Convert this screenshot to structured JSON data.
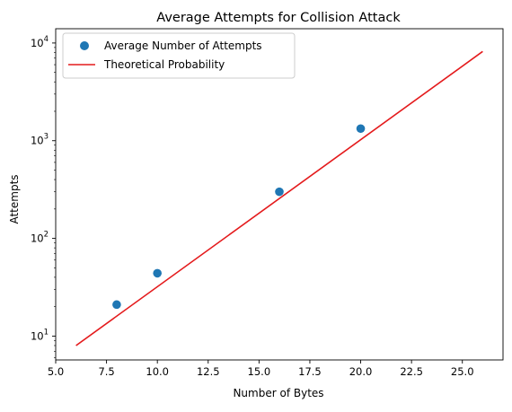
{
  "chart_data": {
    "type": "scatter",
    "title": "Average Attempts for Collision Attack",
    "xlabel": "Number of Bytes",
    "ylabel": "Attempts",
    "xlim": [
      5.0,
      27.0
    ],
    "ylim": [
      5.7,
      14000
    ],
    "y_scale": "log",
    "grid": false,
    "legend_position": "top-left",
    "x_ticks": [
      {
        "value": 5.0,
        "label": "5.0"
      },
      {
        "value": 7.5,
        "label": "7.5"
      },
      {
        "value": 10.0,
        "label": "10.0"
      },
      {
        "value": 12.5,
        "label": "12.5"
      },
      {
        "value": 15.0,
        "label": "15.0"
      },
      {
        "value": 17.5,
        "label": "17.5"
      },
      {
        "value": 20.0,
        "label": "20.0"
      },
      {
        "value": 22.5,
        "label": "22.5"
      },
      {
        "value": 25.0,
        "label": "25.0"
      }
    ],
    "y_ticks": [
      {
        "value": 10,
        "base": "10",
        "exp": "1"
      },
      {
        "value": 100,
        "base": "10",
        "exp": "2"
      },
      {
        "value": 1000,
        "base": "10",
        "exp": "3"
      },
      {
        "value": 10000,
        "base": "10",
        "exp": "4"
      }
    ],
    "series": [
      {
        "name": "Average Number of Attempts",
        "kind": "scatter",
        "color": "#1f77b4",
        "x": [
          8,
          10,
          16,
          20
        ],
        "y": [
          21,
          44,
          300,
          1330
        ]
      },
      {
        "name": "Theoretical Probability",
        "kind": "line",
        "color": "#e41a1c",
        "x": [
          6,
          26
        ],
        "y": [
          8,
          8192
        ]
      }
    ]
  }
}
